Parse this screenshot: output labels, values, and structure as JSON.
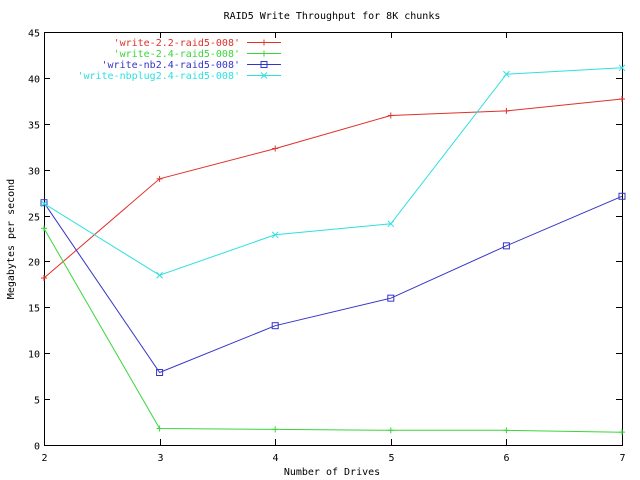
{
  "chart_data": {
    "type": "line",
    "title": "RAID5 Write Throughput for 8K chunks",
    "xlabel": "Number of Drives",
    "ylabel": "Megabytes per second",
    "x": [
      2,
      3,
      4,
      5,
      6,
      7
    ],
    "xlim": [
      2,
      7
    ],
    "ylim": [
      0,
      45
    ],
    "x_ticks": [
      2,
      3,
      4,
      5,
      6,
      7
    ],
    "y_ticks": [
      0,
      5,
      10,
      15,
      20,
      25,
      30,
      35,
      40,
      45
    ],
    "grid": false,
    "legend_position": "top-left",
    "series": [
      {
        "name": "'write-2.2-raid5-008'",
        "color": "#e0302a",
        "marker": "plus",
        "values": [
          18.2,
          29.0,
          32.3,
          35.9,
          36.4,
          37.7
        ]
      },
      {
        "name": "'write-2.4-raid5-008'",
        "color": "#3ad63a",
        "marker": "plus",
        "values": [
          23.6,
          1.8,
          1.7,
          1.6,
          1.6,
          1.4
        ]
      },
      {
        "name": "'write-nb2.4-raid5-008'",
        "color": "#3434c8",
        "marker": "square",
        "values": [
          26.4,
          7.9,
          13.0,
          16.0,
          21.7,
          27.1
        ]
      },
      {
        "name": "'write-nbplug2.4-raid5-008'",
        "color": "#2ee0e0",
        "marker": "x",
        "values": [
          26.3,
          18.5,
          22.9,
          24.1,
          40.4,
          41.1
        ]
      }
    ]
  }
}
